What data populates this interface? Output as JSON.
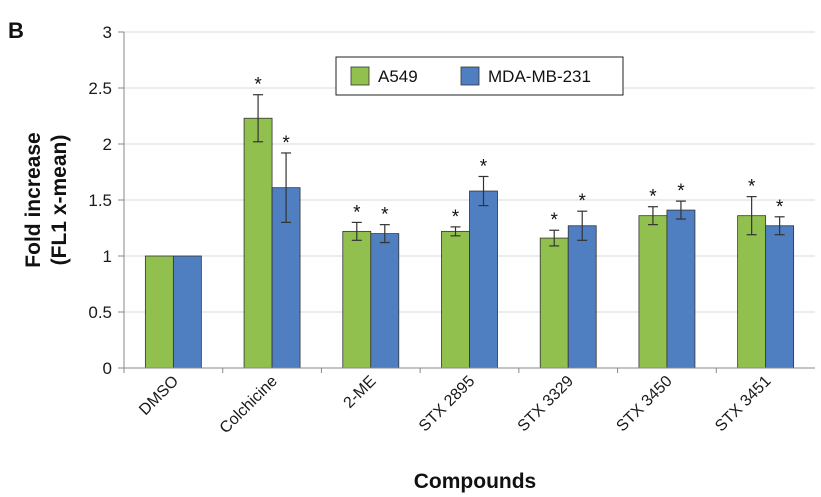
{
  "panel_label": "B",
  "chart_data": {
    "type": "bar",
    "categories": [
      "DMSO",
      "Colchicine",
      "2-ME",
      "STX 2895",
      "STX 3329",
      "STX 3450",
      "STX 3451"
    ],
    "series": [
      {
        "name": "A549",
        "color": "#92c04f",
        "values": [
          1.0,
          2.23,
          1.22,
          1.22,
          1.16,
          1.36,
          1.36
        ],
        "errors": [
          0,
          0.21,
          0.08,
          0.04,
          0.07,
          0.08,
          0.17
        ],
        "significant": [
          false,
          true,
          true,
          true,
          true,
          true,
          true
        ]
      },
      {
        "name": "MDA-MB-231",
        "color": "#4f7fc1",
        "values": [
          1.0,
          1.61,
          1.2,
          1.58,
          1.27,
          1.41,
          1.27
        ],
        "errors": [
          0,
          0.31,
          0.08,
          0.13,
          0.13,
          0.08,
          0.08
        ],
        "significant": [
          false,
          true,
          true,
          true,
          true,
          true,
          true
        ]
      }
    ],
    "significance_marker": "*",
    "ylim": [
      0,
      3
    ],
    "yticks": [
      "0",
      "0.5",
      "1",
      "1.5",
      "2",
      "2.5",
      "3"
    ],
    "ylabel_line1": "Fold increase",
    "ylabel_line2": "(FL1 x-mean)",
    "xlabel": "Compounds",
    "grid": true,
    "legend_position": "top-center"
  }
}
